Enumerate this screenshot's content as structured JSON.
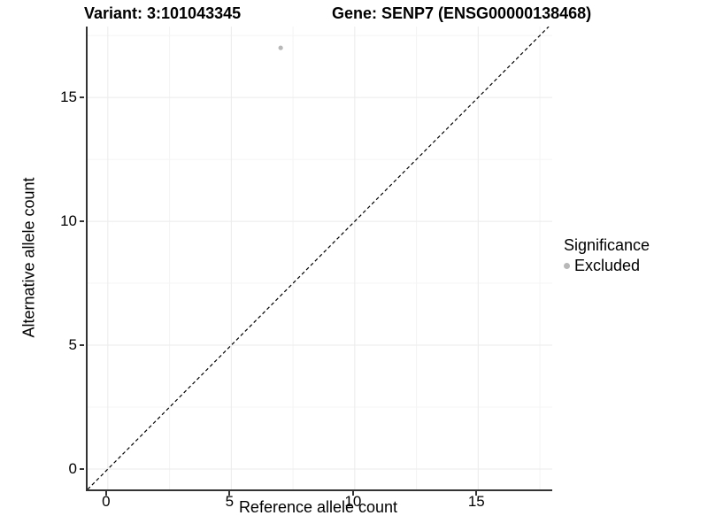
{
  "chart_data": {
    "type": "scatter",
    "title_left": "Variant: 3:101043345",
    "title_right": "Gene: SENP7 (ENSG00000138468)",
    "xlabel": "Reference allele count",
    "ylabel": "Alternative allele count",
    "xlim": [
      -0.82,
      18.0
    ],
    "ylim": [
      -0.82,
      17.86
    ],
    "x_ticks": [
      0,
      5,
      10,
      15
    ],
    "y_ticks": [
      0,
      5,
      10,
      15
    ],
    "x_minor_ticks": [
      2.5,
      7.5,
      12.5,
      17.5
    ],
    "y_minor_ticks": [
      2.5,
      7.5,
      12.5,
      17.5
    ],
    "series": [
      {
        "name": "Excluded",
        "color": "#b8b8b8",
        "points": [
          {
            "x": 7,
            "y": 17
          }
        ]
      }
    ],
    "reference_line": {
      "kind": "identity",
      "style": "dashed",
      "color": "#000000"
    },
    "grid": "faint major and minor gridlines",
    "legend_position": "right",
    "legend_title": "Significance"
  },
  "colors": {
    "background": "#ffffff",
    "axis_line": "#333333",
    "grid_major": "#ebebeb",
    "grid_minor": "#f4f4f4",
    "point": "#b8b8b8",
    "dashed_line": "#000000",
    "text": "#000000"
  }
}
